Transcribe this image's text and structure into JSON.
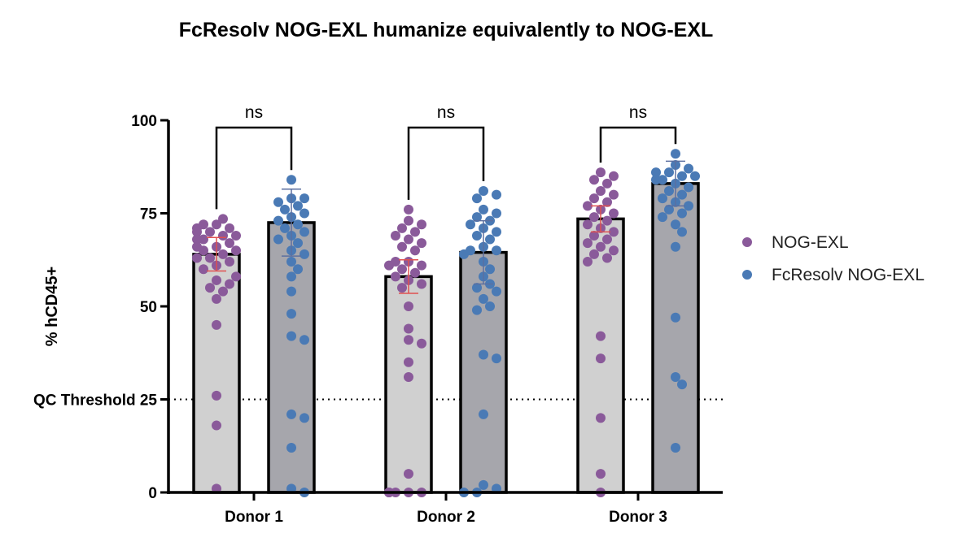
{
  "chart_data": {
    "type": "bar",
    "title": "FcResolv NOG-EXL humanize equivalently to NOG-EXL",
    "xlabel": "",
    "ylabel": "% hCD45+",
    "ylim": [
      0,
      100
    ],
    "yticks": [
      0,
      25,
      50,
      75,
      100
    ],
    "categories": [
      "Donor 1",
      "Donor 2",
      "Donor 3"
    ],
    "threshold": {
      "value": 25,
      "label": "QC Threshold"
    },
    "comparisons": [
      "ns",
      "ns",
      "ns"
    ],
    "legend": {
      "position": "right"
    },
    "series": [
      {
        "name": "NOG-EXL",
        "bar_color": "#d0d0d0",
        "point_color": "#8a5a9a",
        "error_color": "#e05050",
        "values": [
          64,
          58,
          73.5
        ],
        "errors": [
          4.5,
          4.5,
          3.5
        ],
        "points": [
          [
            72,
            71,
            73.5,
            70,
            69,
            68,
            72,
            70,
            71,
            66,
            67,
            68,
            69,
            65,
            64,
            65,
            66,
            63,
            62,
            61,
            60,
            63,
            57,
            56,
            58,
            55,
            54,
            52,
            45,
            26,
            18,
            1
          ],
          [
            76,
            73,
            72,
            71,
            70,
            69,
            68,
            67,
            66,
            65,
            62,
            61,
            62,
            61,
            60,
            59,
            58,
            57,
            56,
            55,
            50,
            44,
            41,
            40,
            35,
            31,
            5,
            0,
            0,
            0,
            0,
            0,
            0
          ],
          [
            86,
            85,
            84,
            83,
            81,
            80,
            79,
            78,
            77,
            76,
            75,
            74,
            73,
            72,
            71,
            70,
            69,
            68,
            67,
            66,
            65,
            64,
            63,
            62,
            42,
            36,
            20,
            5,
            0
          ]
        ]
      },
      {
        "name": "FcResolv NOG-EXL",
        "bar_color": "#a6a6ac",
        "point_color": "#4a7ab5",
        "error_color": "#5b6fa0",
        "values": [
          72.5,
          64.5,
          83
        ],
        "errors": [
          9,
          8.5,
          6
        ],
        "points": [
          [
            84,
            79,
            79,
            78,
            77,
            76,
            75,
            74,
            73,
            72,
            71,
            70,
            69,
            68,
            67,
            65,
            64,
            62,
            60,
            58,
            54,
            48,
            42,
            41,
            21,
            20,
            12,
            1,
            0
          ],
          [
            81,
            80,
            79,
            76,
            75,
            74,
            73,
            72,
            71,
            70,
            69,
            68,
            66,
            65,
            65,
            64,
            62,
            60,
            58,
            56,
            55,
            54,
            52,
            50,
            49,
            37,
            36,
            21,
            2,
            1,
            0,
            0
          ],
          [
            91,
            88,
            87,
            86,
            86,
            85,
            85,
            84,
            84,
            83,
            82,
            81,
            80,
            79,
            78,
            77,
            76,
            75,
            74,
            72,
            70,
            66,
            47,
            31,
            29,
            12
          ]
        ]
      }
    ]
  }
}
